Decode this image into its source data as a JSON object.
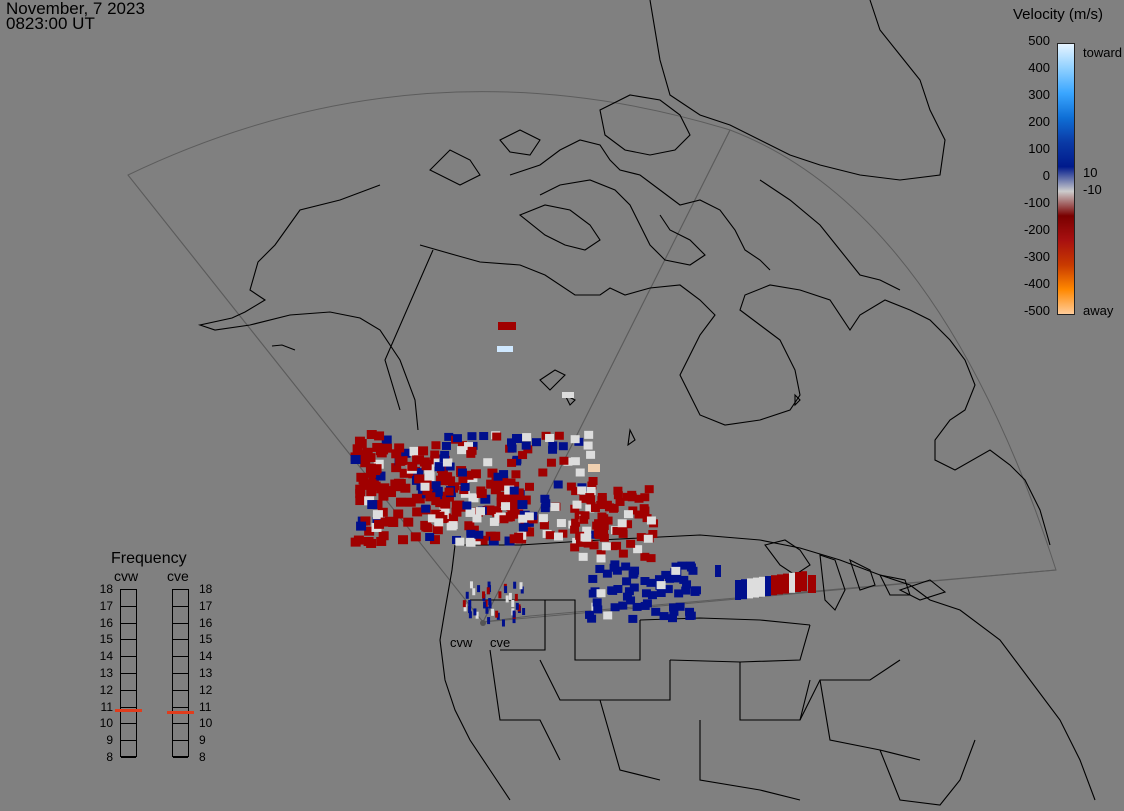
{
  "header": {
    "date": "November, 7 2023",
    "time": "0823:00 UT"
  },
  "velocity_scale": {
    "title": "Velocity (m/s)",
    "ticks": [
      "500",
      "400",
      "300",
      "200",
      "100",
      "0",
      "-100",
      "-200",
      "-300",
      "-400",
      "-500"
    ],
    "label_toward": "toward",
    "label_away": "away",
    "label_pos_threshold": "10",
    "label_neg_threshold": "-10",
    "colors": [
      "#e6f4ff",
      "#8fd0ff",
      "#3aa6ff",
      "#0f6fd6",
      "#0a3aa6",
      "#001a8c",
      "#cccccc",
      "#7a0000",
      "#a81010",
      "#c83a00",
      "#ff8800",
      "#ffcc99"
    ]
  },
  "frequency_panel": {
    "title": "Frequency",
    "radars": [
      {
        "name": "cvw",
        "level_mhz": 10.8
      },
      {
        "name": "cve",
        "level_mhz": 10.7
      }
    ],
    "levels": [
      "18",
      "17",
      "16",
      "15",
      "14",
      "13",
      "12",
      "11",
      "10",
      "9",
      "8"
    ]
  },
  "map": {
    "radar_site_labels": [
      "cvw",
      "cve"
    ],
    "colors": {
      "background": "#808080",
      "coastline": "#000000",
      "fov": "#5a5a5a",
      "away_red": "#a00000",
      "toward_blue": "#000f8c",
      "ground_scatter": "#dddddd"
    }
  }
}
